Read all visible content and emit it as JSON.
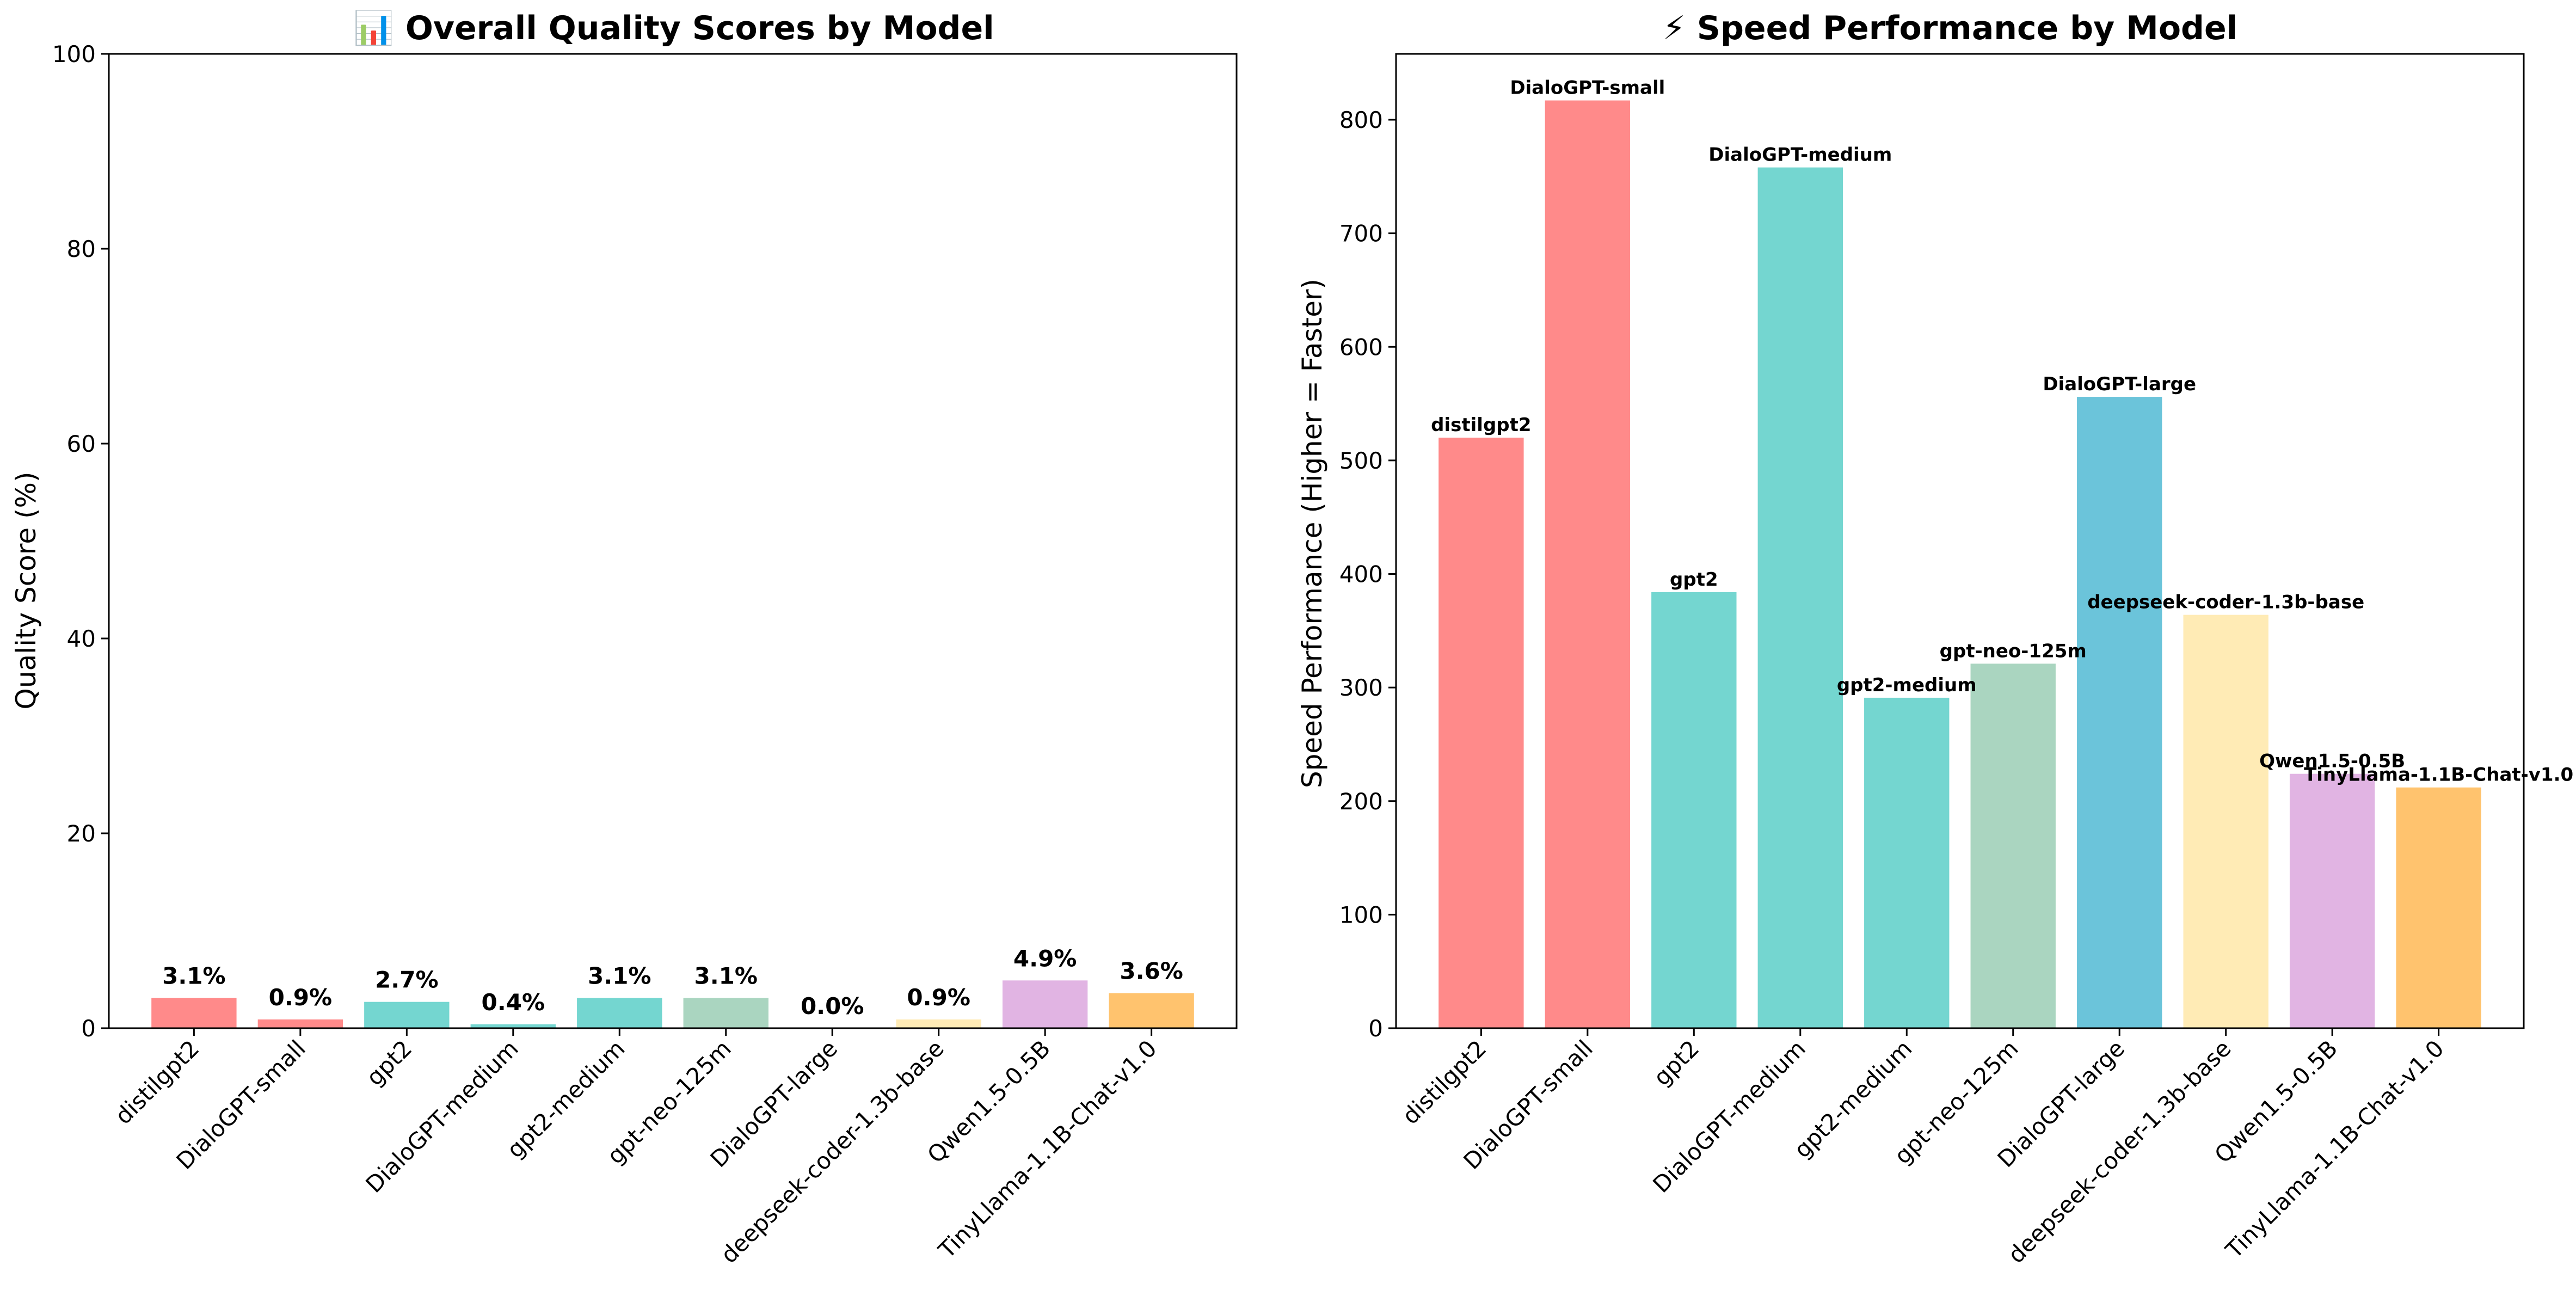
{
  "chart_data": [
    {
      "type": "bar",
      "title": "📊 Overall Quality Scores by Model",
      "xlabel": "",
      "ylabel": "Quality Score (%)",
      "ylim": [
        0,
        100
      ],
      "yticks": [
        0,
        20,
        40,
        60,
        80,
        100
      ],
      "grid": false,
      "legend": "none",
      "categories": [
        "distilgpt2",
        "DialoGPT-small",
        "gpt2",
        "DialoGPT-medium",
        "gpt2-medium",
        "gpt-neo-125m",
        "DialoGPT-large",
        "deepseek-coder-1.3b-base",
        "Qwen1.5-0.5B",
        "TinyLlama-1.1B-Chat-v1.0"
      ],
      "values": [
        3.1,
        0.9,
        2.7,
        0.4,
        3.1,
        3.1,
        0.0,
        0.9,
        4.9,
        3.6
      ],
      "data_labels": [
        "3.1%",
        "0.9%",
        "2.7%",
        "0.4%",
        "3.1%",
        "3.1%",
        "0.0%",
        "0.9%",
        "4.9%",
        "3.6%"
      ],
      "colors": [
        "#FF8A8A",
        "#FF8A8A",
        "#74D6D0",
        "#74D6D0",
        "#74D6D0",
        "#AAD5C0",
        "#6BC4DA",
        "#FFEBB5",
        "#E1B4E3",
        "#FFC36E"
      ]
    },
    {
      "type": "bar",
      "title": "⚡ Speed Performance by Model",
      "xlabel": "",
      "ylabel": "Speed Performance (Higher = Faster)",
      "ylim": [
        0,
        858
      ],
      "yticks": [
        0,
        100,
        200,
        300,
        400,
        500,
        600,
        700,
        800
      ],
      "grid": false,
      "legend": "none",
      "categories": [
        "distilgpt2",
        "DialoGPT-small",
        "gpt2",
        "DialoGPT-medium",
        "gpt2-medium",
        "gpt-neo-125m",
        "DialoGPT-large",
        "deepseek-coder-1.3b-base",
        "Qwen1.5-0.5B",
        "TinyLlama-1.1B-Chat-v1.0"
      ],
      "values": [
        520,
        817,
        384,
        758,
        291,
        321,
        556,
        364,
        224,
        212
      ],
      "data_labels": [
        "distilgpt2",
        "DialoGPT-small",
        "gpt2",
        "DialoGPT-medium",
        "gpt2-medium",
        "gpt-neo-125m",
        "DialoGPT-large",
        "deepseek-coder-1.3b-base",
        "Qwen1.5-0.5B",
        "TinyLlama-1.1B-Chat-v1.0"
      ],
      "colors": [
        "#FF8A8A",
        "#FF8A8A",
        "#74D6D0",
        "#74D6D0",
        "#74D6D0",
        "#AAD5C0",
        "#6BC4DA",
        "#FFEBB5",
        "#E1B4E3",
        "#FFC36E"
      ]
    }
  ]
}
